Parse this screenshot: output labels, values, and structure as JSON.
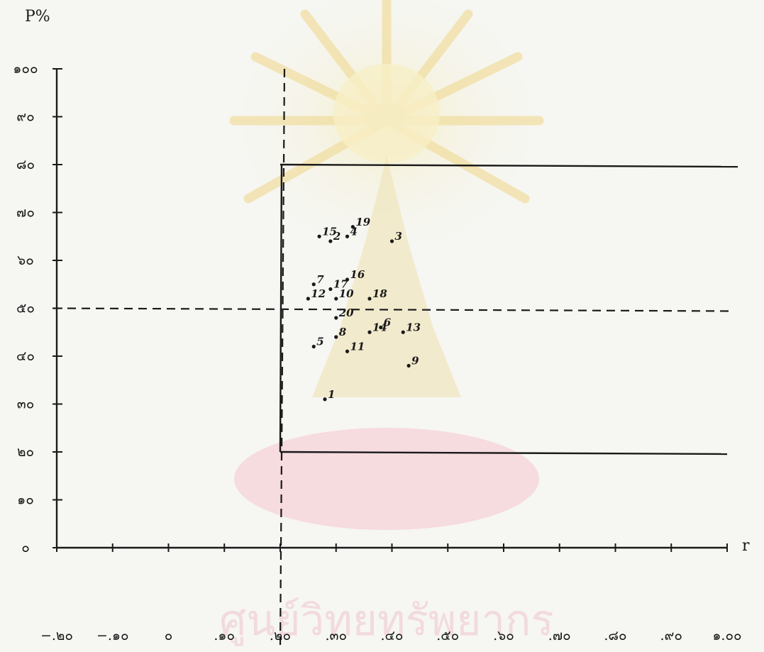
{
  "chart_data": {
    "type": "scatter",
    "title": "",
    "xlabel": "r",
    "ylabel": "P%",
    "x_tick_labels": [
      "−.๒๐",
      "−.๑๐",
      "๐",
      ".๑๐",
      ".๒๐",
      ".๓๐",
      ".๔๐",
      ".๕๐",
      ".๖๐",
      ".๗๐",
      ".๘๐",
      ".๙๐",
      "๑.๐๐"
    ],
    "x_ticks": [
      -0.2,
      -0.1,
      0.0,
      0.1,
      0.2,
      0.3,
      0.4,
      0.5,
      0.6,
      0.7,
      0.8,
      0.9,
      1.0
    ],
    "y_tick_labels": [
      "๐",
      "๑๐",
      "๒๐",
      "๓๐",
      "๔๐",
      "๕๐",
      "๖๐",
      "๗๐",
      "๘๐",
      "๙๐",
      "๑๐๐"
    ],
    "y_ticks": [
      0,
      10,
      20,
      30,
      40,
      50,
      60,
      70,
      80,
      90,
      100
    ],
    "xlim": [
      -0.2,
      1.0
    ],
    "ylim": [
      0,
      100
    ],
    "reference_lines": {
      "x_dashed": 0.2,
      "y_dashed": 50,
      "box_x_from": 0.2,
      "box_y_top": 80,
      "box_y_bottom": 20
    },
    "points": [
      {
        "label": "1",
        "x": 0.28,
        "y": 31
      },
      {
        "label": "2",
        "x": 0.29,
        "y": 64
      },
      {
        "label": "3",
        "x": 0.4,
        "y": 64
      },
      {
        "label": "4",
        "x": 0.32,
        "y": 65
      },
      {
        "label": "5",
        "x": 0.26,
        "y": 42
      },
      {
        "label": "6",
        "x": 0.38,
        "y": 46
      },
      {
        "label": "7",
        "x": 0.26,
        "y": 55
      },
      {
        "label": "8",
        "x": 0.3,
        "y": 44
      },
      {
        "label": "9",
        "x": 0.43,
        "y": 38
      },
      {
        "label": "10",
        "x": 0.3,
        "y": 52
      },
      {
        "label": "11",
        "x": 0.32,
        "y": 41
      },
      {
        "label": "12",
        "x": 0.25,
        "y": 52
      },
      {
        "label": "13",
        "x": 0.42,
        "y": 45
      },
      {
        "label": "14",
        "x": 0.36,
        "y": 45
      },
      {
        "label": "15",
        "x": 0.27,
        "y": 65
      },
      {
        "label": "16",
        "x": 0.32,
        "y": 56
      },
      {
        "label": "17",
        "x": 0.29,
        "y": 54
      },
      {
        "label": "18",
        "x": 0.36,
        "y": 52
      },
      {
        "label": "19",
        "x": 0.33,
        "y": 67
      },
      {
        "label": "20",
        "x": 0.3,
        "y": 48
      }
    ],
    "grid": false,
    "legend": "none"
  }
}
